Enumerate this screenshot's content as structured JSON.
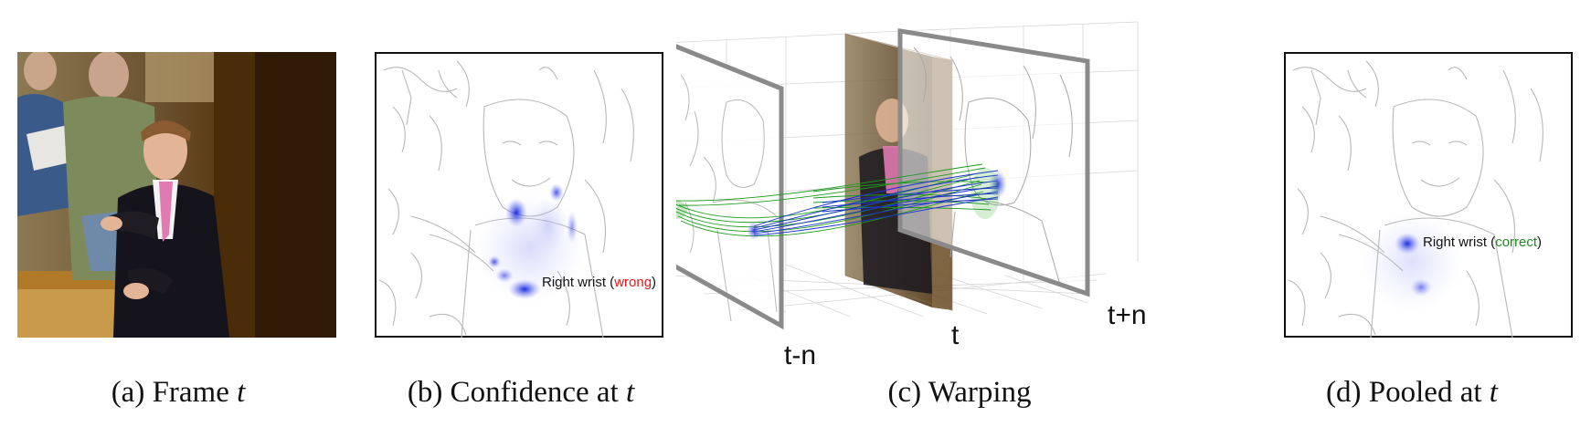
{
  "captions": {
    "a": {
      "text": "(a) Frame ",
      "var": "t"
    },
    "b": {
      "text": "(b) Confidence at ",
      "var": "t"
    },
    "c": {
      "text": "(c) Warping",
      "var": ""
    },
    "d": {
      "text": "(d) Pooled at ",
      "var": "t"
    }
  },
  "annotations": {
    "b": {
      "label": "Right wrist (",
      "status": "wrong",
      "close": ")",
      "status_color": "#e01a1a"
    },
    "d": {
      "label": "Right wrist (",
      "status": "correct",
      "close": ")",
      "status_color": "#1f8a1f"
    }
  },
  "axis_labels": {
    "t_minus_n": "t-n",
    "t": "t",
    "t_plus_n": "t+n"
  },
  "colors": {
    "heat": "#2030e0",
    "flow_green": "#1d9a1d",
    "flow_blue": "#1a2fd8",
    "frame_border": "#8a8a8a"
  }
}
